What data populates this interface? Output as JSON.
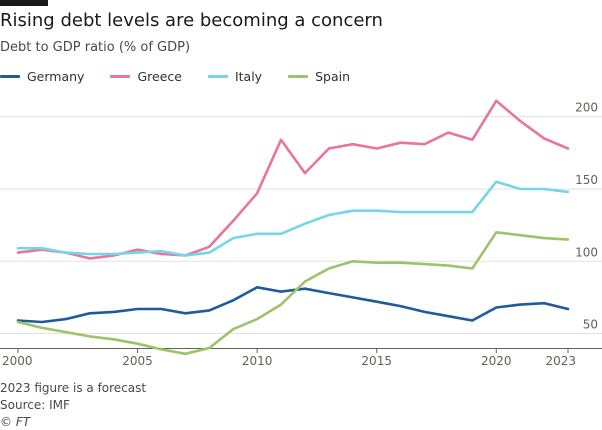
{
  "chart_data": {
    "type": "line",
    "title": "Rising debt levels are becoming a concern",
    "subtitle": "Debt to GDP ratio (% of GDP)",
    "xlabel": "",
    "ylabel": "",
    "x": [
      2000,
      2001,
      2002,
      2003,
      2004,
      2005,
      2006,
      2007,
      2008,
      2009,
      2010,
      2011,
      2012,
      2013,
      2014,
      2015,
      2016,
      2017,
      2018,
      2019,
      2020,
      2021,
      2022,
      2023
    ],
    "xlim": [
      2000,
      2023
    ],
    "ylim": [
      40,
      215
    ],
    "x_ticks": [
      2000,
      2005,
      2010,
      2015,
      2020,
      2023
    ],
    "y_ticks": [
      50,
      100,
      150,
      200
    ],
    "grid": "horizontal",
    "y_axis_position": "right",
    "legend_position": "top-left",
    "series": [
      {
        "name": "Germany",
        "color": "#1f5b99",
        "values": [
          59,
          58,
          60,
          64,
          65,
          67,
          67,
          64,
          66,
          73,
          82,
          79,
          81,
          78,
          75,
          72,
          69,
          65,
          62,
          59,
          68,
          70,
          71,
          67
        ]
      },
      {
        "name": "Greece",
        "color": "#e8759b",
        "values": [
          106,
          108,
          106,
          102,
          104,
          108,
          105,
          104,
          110,
          128,
          147,
          184,
          161,
          178,
          181,
          178,
          182,
          181,
          189,
          184,
          211,
          197,
          185,
          178
        ]
      },
      {
        "name": "Italy",
        "color": "#76d6e8",
        "values": [
          109,
          109,
          106,
          105,
          105,
          106,
          107,
          104,
          106,
          116,
          119,
          119,
          126,
          132,
          135,
          135,
          134,
          134,
          134,
          134,
          155,
          150,
          150,
          148
        ]
      },
      {
        "name": "Spain",
        "color": "#9dc36a",
        "values": [
          58,
          54,
          51,
          48,
          46,
          43,
          39,
          36,
          40,
          53,
          60,
          70,
          86,
          95,
          100,
          99,
          99,
          98,
          97,
          95,
          120,
          118,
          116,
          115
        ]
      }
    ]
  },
  "footnote": "2023 figure is a forecast",
  "source": "Source: IMF",
  "credit": "© FT"
}
